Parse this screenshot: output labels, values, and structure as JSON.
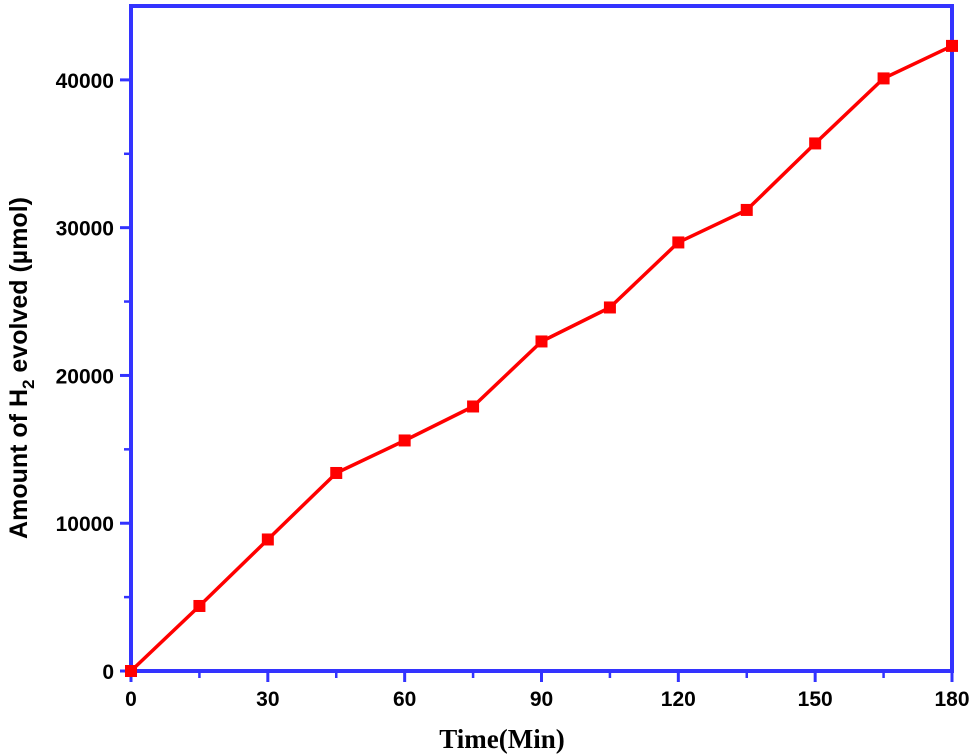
{
  "chart_data": {
    "type": "line",
    "xlabel": "Time(Min)",
    "ylabel": {
      "prefix": "Amount of H",
      "subscript": "2",
      "suffix": " evolved (µmol)"
    },
    "xlim": [
      0,
      180
    ],
    "ylim": [
      0,
      45000
    ],
    "x_ticks": [
      0,
      30,
      60,
      90,
      120,
      150,
      180
    ],
    "y_ticks": [
      0,
      10000,
      20000,
      30000,
      40000
    ],
    "x_tick_labels": [
      "0",
      "30",
      "60",
      "90",
      "120",
      "150",
      "180"
    ],
    "y_tick_labels": [
      "0",
      "10000",
      "20000",
      "30000",
      "40000"
    ],
    "grid": false,
    "series": [
      {
        "marker": "square",
        "color": "#ff0000",
        "x": [
          0,
          15,
          30,
          45,
          60,
          75,
          90,
          105,
          120,
          135,
          150,
          165,
          180
        ],
        "y": [
          0,
          4400,
          8900,
          13400,
          15600,
          17900,
          22300,
          24600,
          29000,
          31200,
          35700,
          40100,
          42300
        ]
      }
    ],
    "frame_color": "#3333ff"
  }
}
